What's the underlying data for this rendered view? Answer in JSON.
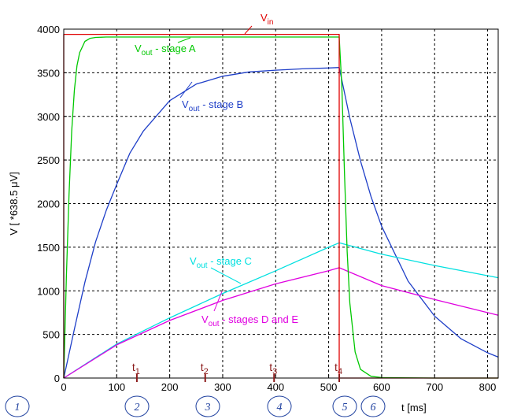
{
  "chart_data": {
    "type": "line",
    "xlabel": "t [ms]",
    "ylabel": "V [ *638.5 μV]",
    "xlim": [
      0,
      820
    ],
    "ylim": [
      0,
      4000
    ],
    "x_ticks": [
      "0",
      "100",
      "200",
      "300",
      "400",
      "500",
      "600",
      "700",
      "800"
    ],
    "y_ticks": [
      "0",
      "500",
      "1000",
      "1500",
      "2000",
      "2500",
      "3000",
      "3500",
      "4000"
    ],
    "grid": true,
    "series": [
      {
        "name": "Vin",
        "color": "#e00000",
        "x": [
          0,
          0,
          520,
          520,
          820
        ],
        "y": [
          0,
          3940,
          3940,
          0,
          0
        ]
      },
      {
        "name": "Vout - stage A",
        "color": "#00c800",
        "x": [
          0,
          5,
          10,
          15,
          20,
          25,
          30,
          40,
          50,
          60,
          80,
          100,
          200,
          300,
          400,
          520,
          525,
          530,
          535,
          540,
          550,
          560,
          580,
          600,
          700,
          820
        ],
        "y": [
          0,
          1180,
          2100,
          2830,
          3300,
          3580,
          3730,
          3860,
          3895,
          3905,
          3910,
          3910,
          3910,
          3910,
          3910,
          3910,
          3330,
          2320,
          1450,
          860,
          300,
          100,
          20,
          5,
          0,
          0
        ]
      },
      {
        "name": "Vout - stage B",
        "color": "#1f3fc8",
        "x": [
          0,
          20,
          40,
          60,
          80,
          100,
          125,
          150,
          200,
          250,
          300,
          350,
          400,
          450,
          500,
          520,
          540,
          560,
          580,
          600,
          650,
          700,
          750,
          800,
          820
        ],
        "y": [
          0,
          560,
          1100,
          1560,
          1920,
          2220,
          2580,
          2830,
          3180,
          3370,
          3460,
          3510,
          3530,
          3545,
          3555,
          3560,
          2980,
          2490,
          2080,
          1740,
          1110,
          710,
          450,
          290,
          240
        ]
      },
      {
        "name": "Vout - stage C",
        "color": "#00e0e0",
        "x": [
          0,
          100,
          200,
          300,
          400,
          500,
          520,
          600,
          700,
          820
        ],
        "y": [
          0,
          390,
          690,
          970,
          1230,
          1500,
          1550,
          1420,
          1290,
          1150
        ]
      },
      {
        "name": "Vout - stages D and E",
        "color": "#e000e0",
        "x": [
          0,
          100,
          200,
          300,
          400,
          500,
          520,
          600,
          700,
          820
        ],
        "y": [
          0,
          380,
          660,
          890,
          1080,
          1230,
          1265,
          1060,
          900,
          720
        ]
      }
    ],
    "annotations": [
      {
        "main": "V",
        "sub": "in",
        "color": "#e00000"
      },
      {
        "main": "V",
        "sub": "out",
        "rest": " - stage A",
        "color": "#00c800"
      },
      {
        "main": "V",
        "sub": "out",
        "rest": " - stage B",
        "color": "#1f3fc8"
      },
      {
        "main": "V",
        "sub": "out",
        "rest": " - stage C",
        "color": "#00e0e0"
      },
      {
        "main": "V",
        "sub": "out",
        "rest": " - stages D and E",
        "color": "#e000e0"
      }
    ],
    "time_markers": [
      {
        "main": "t",
        "sub": "1",
        "x": 138
      },
      {
        "main": "t",
        "sub": "2",
        "x": 267
      },
      {
        "main": "t",
        "sub": "3",
        "x": 397
      },
      {
        "main": "t",
        "sub": "4",
        "x": 520
      }
    ],
    "phases": [
      "1",
      "2",
      "3",
      "4",
      "5",
      "6"
    ]
  }
}
